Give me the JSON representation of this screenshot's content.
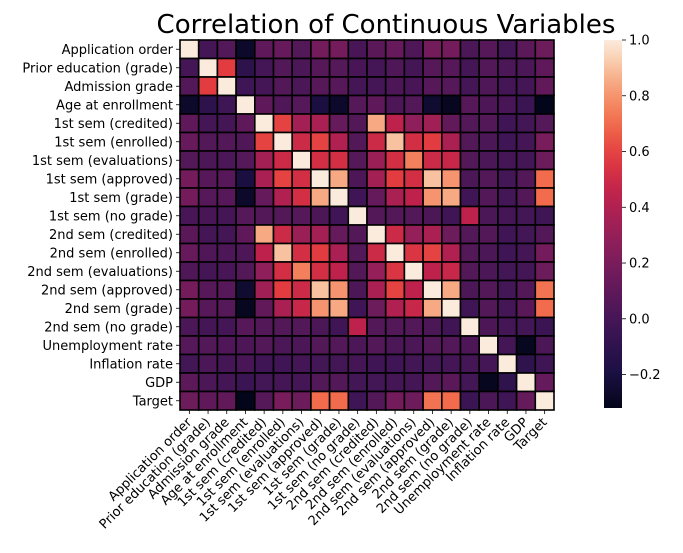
{
  "chart_data": {
    "type": "heatmap",
    "title": "Correlation of Continuous Variables",
    "labels": [
      "Application order",
      "Prior education (grade)",
      "Admission grade",
      "Age at enrollment",
      "1st sem (credited)",
      "1st sem (enrolled)",
      "1st sem (evaluations)",
      "1st sem (approved)",
      "1st sem (grade)",
      "1st sem (no grade)",
      "2nd sem (credited)",
      "2nd sem (enrolled)",
      "2nd sem (evaluations)",
      "2nd sem (approved)",
      "2nd sem (grade)",
      "2nd sem (no grade)",
      "Unemployment rate",
      "Inflation rate",
      "GDP",
      "Target"
    ],
    "values": [
      [
        1.0,
        0.0,
        0.05,
        -0.27,
        0.1,
        0.13,
        0.05,
        0.18,
        0.18,
        0.01,
        0.08,
        0.13,
        0.04,
        0.18,
        0.18,
        0.02,
        0.07,
        -0.01,
        0.09,
        0.15
      ],
      [
        0.0,
        1.0,
        0.58,
        -0.11,
        0.0,
        0.05,
        0.02,
        0.07,
        0.06,
        0.01,
        0.0,
        0.04,
        0.0,
        0.07,
        0.07,
        0.0,
        0.05,
        0.02,
        0.02,
        0.1
      ],
      [
        0.05,
        0.58,
        1.0,
        -0.03,
        0.0,
        0.05,
        0.02,
        0.07,
        0.07,
        0.0,
        0.0,
        0.03,
        0.01,
        0.07,
        0.06,
        0.0,
        0.04,
        0.0,
        0.0,
        0.11
      ],
      [
        -0.27,
        -0.11,
        -0.03,
        1.0,
        0.1,
        0.04,
        0.06,
        -0.2,
        -0.27,
        0.06,
        0.1,
        0.03,
        0.05,
        -0.25,
        -0.3,
        0.07,
        0.03,
        0.01,
        -0.05,
        -0.32
      ],
      [
        0.1,
        0.0,
        0.0,
        0.1,
        1.0,
        0.6,
        0.35,
        0.38,
        0.12,
        0.05,
        0.85,
        0.45,
        0.28,
        0.34,
        0.11,
        0.05,
        0.05,
        -0.02,
        -0.01,
        0.06
      ],
      [
        0.13,
        0.05,
        0.05,
        0.04,
        0.6,
        1.0,
        0.5,
        0.6,
        0.4,
        0.05,
        0.5,
        0.9,
        0.52,
        0.58,
        0.38,
        0.05,
        0.02,
        -0.02,
        0.0,
        0.2
      ],
      [
        0.05,
        0.02,
        0.02,
        0.06,
        0.35,
        0.5,
        1.0,
        0.52,
        0.52,
        0.06,
        0.32,
        0.52,
        0.75,
        0.5,
        0.48,
        0.05,
        0.02,
        0.0,
        0.0,
        0.15
      ],
      [
        0.18,
        0.07,
        0.07,
        -0.2,
        0.38,
        0.6,
        0.52,
        1.0,
        0.85,
        0.03,
        0.35,
        0.58,
        0.52,
        0.9,
        0.8,
        0.02,
        0.05,
        -0.01,
        0.05,
        0.7
      ],
      [
        0.18,
        0.06,
        0.07,
        -0.27,
        0.12,
        0.4,
        0.52,
        0.85,
        1.0,
        -0.02,
        0.12,
        0.38,
        0.45,
        0.8,
        0.85,
        -0.02,
        0.05,
        -0.01,
        0.05,
        0.7
      ],
      [
        0.01,
        0.01,
        0.0,
        0.06,
        0.05,
        0.05,
        0.06,
        0.03,
        -0.02,
        1.0,
        0.05,
        0.05,
        0.05,
        0.02,
        -0.02,
        0.45,
        0.02,
        0.0,
        -0.01,
        -0.03
      ],
      [
        0.08,
        0.0,
        0.0,
        0.1,
        0.85,
        0.5,
        0.32,
        0.35,
        0.12,
        0.05,
        1.0,
        0.5,
        0.3,
        0.38,
        0.15,
        0.05,
        0.05,
        -0.02,
        -0.01,
        0.05
      ],
      [
        0.13,
        0.04,
        0.03,
        0.03,
        0.45,
        0.9,
        0.52,
        0.58,
        0.38,
        0.05,
        0.5,
        1.0,
        0.55,
        0.6,
        0.4,
        0.05,
        0.02,
        -0.02,
        0.0,
        0.18
      ],
      [
        0.04,
        0.0,
        0.01,
        0.05,
        0.28,
        0.52,
        0.75,
        0.52,
        0.45,
        0.05,
        0.3,
        0.55,
        1.0,
        0.45,
        0.48,
        0.05,
        0.02,
        -0.01,
        0.0,
        0.15
      ],
      [
        0.18,
        0.07,
        0.07,
        -0.25,
        0.34,
        0.58,
        0.5,
        0.9,
        0.8,
        0.02,
        0.38,
        0.6,
        0.45,
        1.0,
        0.85,
        0.02,
        0.05,
        -0.01,
        0.05,
        0.72
      ],
      [
        0.18,
        0.07,
        0.06,
        -0.3,
        0.11,
        0.38,
        0.48,
        0.8,
        0.85,
        -0.02,
        0.15,
        0.4,
        0.48,
        0.85,
        1.0,
        -0.02,
        0.05,
        0.0,
        0.08,
        0.7
      ],
      [
        0.02,
        0.0,
        0.0,
        0.07,
        0.05,
        0.05,
        0.05,
        0.02,
        -0.02,
        0.45,
        0.05,
        0.05,
        0.05,
        0.02,
        -0.02,
        1.0,
        0.03,
        0.0,
        -0.01,
        -0.05
      ],
      [
        0.07,
        0.05,
        0.04,
        0.03,
        0.05,
        0.02,
        0.02,
        0.05,
        0.05,
        0.02,
        0.05,
        0.02,
        0.02,
        0.05,
        0.05,
        0.03,
        1.0,
        0.0,
        -0.3,
        0.02
      ],
      [
        -0.01,
        0.02,
        0.0,
        0.01,
        -0.02,
        -0.02,
        0.0,
        -0.01,
        -0.01,
        0.0,
        -0.02,
        -0.02,
        -0.01,
        -0.01,
        0.0,
        0.0,
        0.0,
        1.0,
        -0.1,
        -0.02
      ],
      [
        0.09,
        0.02,
        0.0,
        -0.05,
        -0.01,
        0.0,
        0.0,
        0.05,
        0.05,
        -0.01,
        -0.01,
        0.0,
        0.0,
        0.05,
        0.08,
        -0.01,
        -0.3,
        -0.1,
        1.0,
        0.12
      ],
      [
        0.15,
        0.1,
        0.11,
        -0.32,
        0.06,
        0.2,
        0.15,
        0.7,
        0.7,
        -0.03,
        0.05,
        0.18,
        0.15,
        0.72,
        0.7,
        -0.05,
        0.02,
        -0.02,
        0.12,
        1.0
      ]
    ],
    "vmin": -0.32,
    "vmax": 1.0,
    "colorbar_ticks": [
      "1.0",
      "0.8",
      "0.6",
      "0.4",
      "0.2",
      "0.0",
      "−0.2"
    ],
    "colormap": "rocket",
    "cell_border_color": "#000000",
    "grid": false,
    "legend": "colorbar-right"
  }
}
